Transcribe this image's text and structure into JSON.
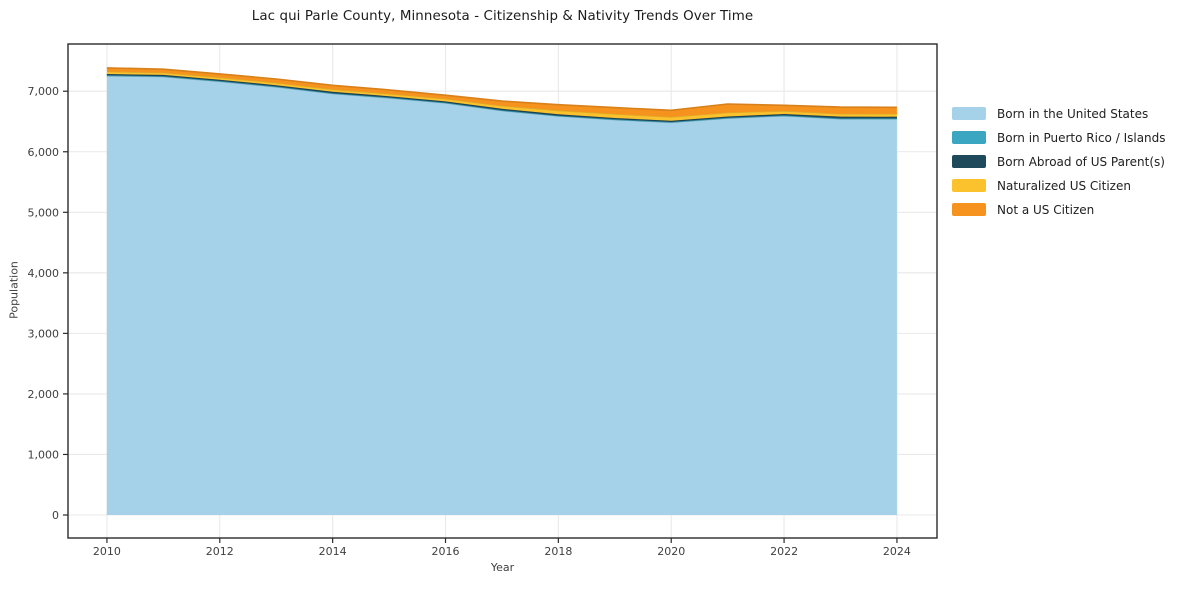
{
  "figure": {
    "background": "#ffffff"
  },
  "chart_data": {
    "type": "area",
    "stacked": true,
    "title": "Lac qui Parle County, Minnesota - Citizenship & Nativity Trends Over Time",
    "xlabel": "Year",
    "ylabel": "Population",
    "x": [
      2010,
      2011,
      2012,
      2013,
      2014,
      2015,
      2016,
      2017,
      2018,
      2019,
      2020,
      2021,
      2022,
      2023,
      2024
    ],
    "series": [
      {
        "name": "Born in the United States",
        "color": "#a5d2e9",
        "values": [
          7255,
          7240,
          7160,
          7070,
          6960,
          6890,
          6805,
          6680,
          6590,
          6530,
          6485,
          6555,
          6595,
          6545,
          6545
        ]
      },
      {
        "name": "Born in Puerto Rico / Islands",
        "color": "#3aa6c1",
        "values": [
          8,
          8,
          8,
          8,
          8,
          7,
          7,
          7,
          6,
          6,
          6,
          6,
          6,
          6,
          6
        ]
      },
      {
        "name": "Born Abroad of US Parent(s)",
        "color": "#1f4a5c",
        "values": [
          22,
          22,
          22,
          22,
          22,
          20,
          20,
          22,
          22,
          22,
          20,
          22,
          22,
          30,
          28
        ]
      },
      {
        "name": "Naturalized US Citizen",
        "color": "#fcc22e",
        "values": [
          40,
          38,
          38,
          40,
          42,
          42,
          45,
          52,
          66,
          68,
          64,
          66,
          52,
          48,
          48
        ]
      },
      {
        "name": "Not a US Citizen",
        "color": "#f6921e",
        "values": [
          60,
          55,
          58,
          62,
          66,
          62,
          58,
          76,
          94,
          104,
          110,
          140,
          92,
          108,
          108
        ]
      }
    ],
    "xticks": [
      2010,
      2012,
      2014,
      2016,
      2018,
      2020,
      2022,
      2024
    ],
    "yticks": [
      0,
      1000,
      2000,
      3000,
      4000,
      5000,
      6000,
      7000
    ],
    "xlim": [
      2009.31,
      2024.71
    ],
    "ylim": [
      -380,
      7780
    ],
    "grid": true,
    "grid_color": "#e9e9e9",
    "axis_color": "#2b2b2b",
    "tick_label_color": "#3f3f3f",
    "legend_position": "right"
  }
}
